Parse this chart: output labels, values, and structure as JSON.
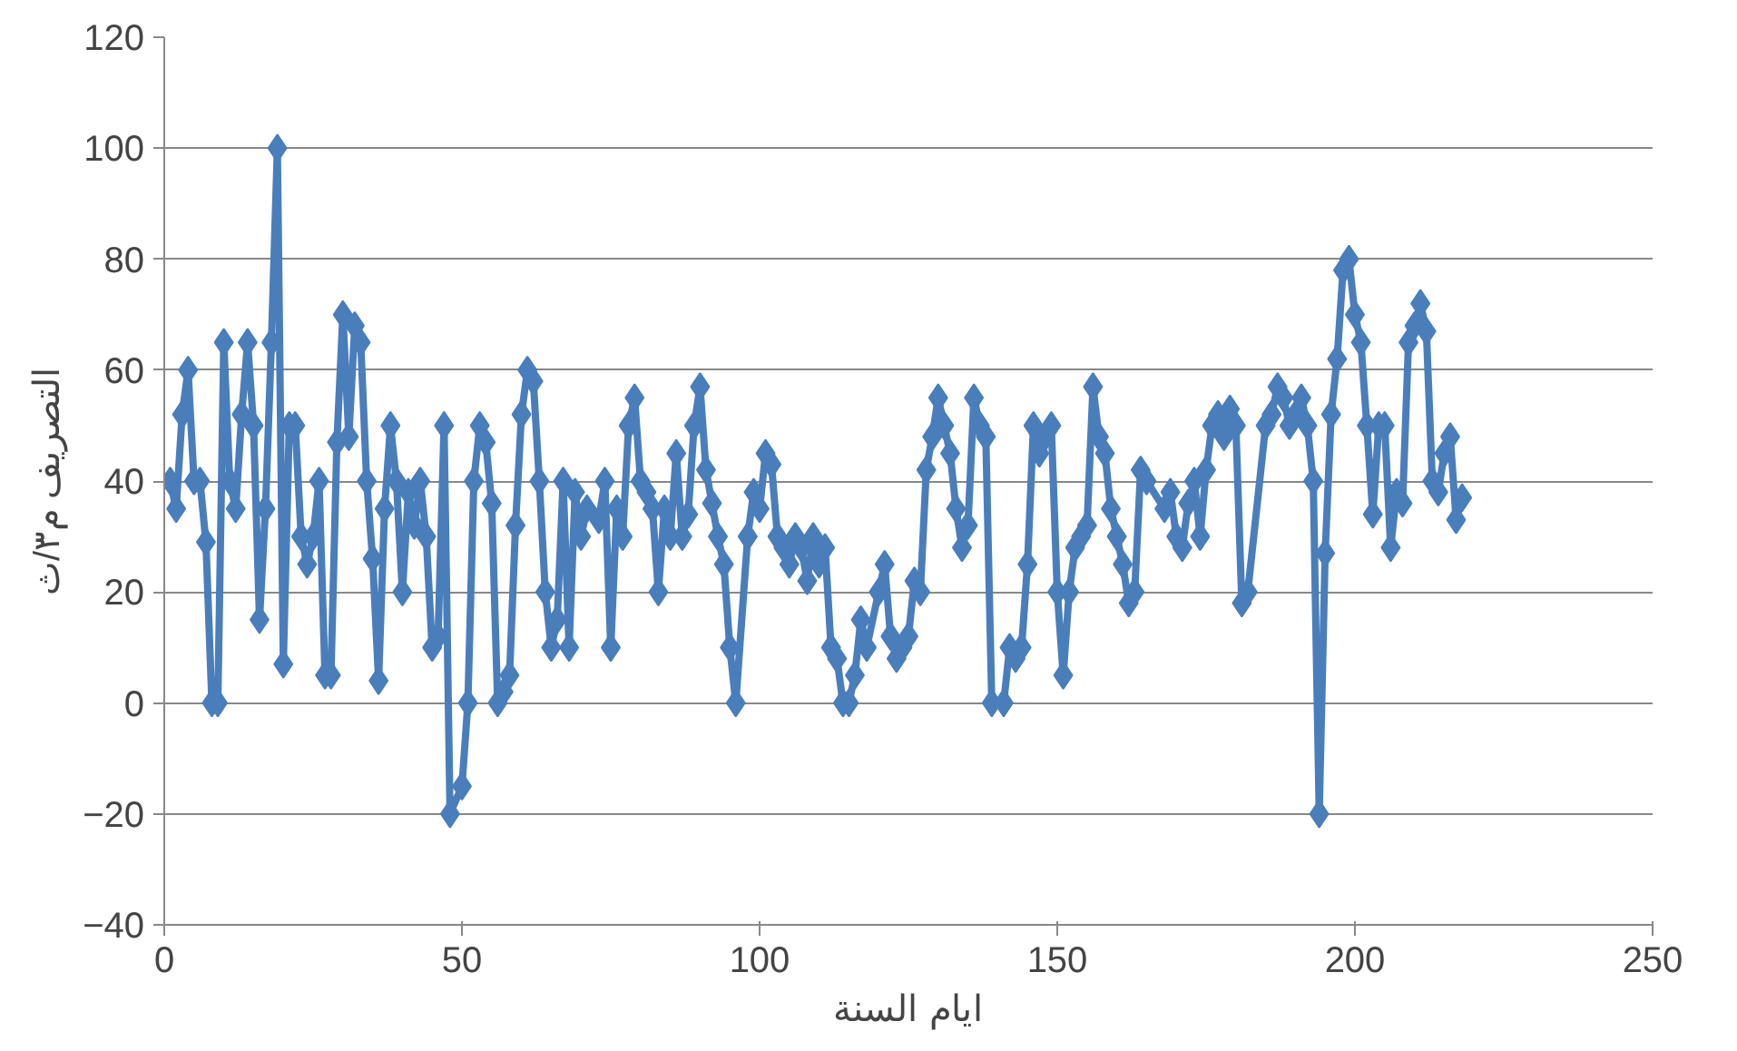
{
  "chart_data": {
    "type": "line",
    "xlabel": "ايام السنة",
    "ylabel": "التصريف م٣/ث",
    "x": [
      1,
      2,
      3,
      4,
      5,
      6,
      7,
      8,
      9,
      10,
      11,
      12,
      13,
      14,
      15,
      16,
      17,
      18,
      19,
      20,
      21,
      22,
      23,
      24,
      25,
      26,
      27,
      28,
      29,
      30,
      31,
      32,
      33,
      34,
      35,
      36,
      37,
      38,
      39,
      40,
      41,
      42,
      43,
      44,
      45,
      46,
      47,
      48,
      50,
      51,
      52,
      53,
      54,
      55,
      56,
      57,
      58,
      59,
      60,
      61,
      62,
      63,
      64,
      65,
      66,
      67,
      68,
      69,
      70,
      71,
      73,
      74,
      75,
      76,
      77,
      78,
      79,
      80,
      81,
      82,
      83,
      84,
      85,
      86,
      87,
      88,
      89,
      90,
      91,
      92,
      93,
      94,
      95,
      96,
      98,
      99,
      100,
      101,
      102,
      103,
      104,
      105,
      106,
      107,
      108,
      109,
      110,
      111,
      112,
      113,
      114,
      115,
      116,
      117,
      118,
      120,
      121,
      122,
      123,
      124,
      125,
      126,
      127,
      128,
      129,
      130,
      131,
      132,
      133,
      134,
      135,
      136,
      137,
      138,
      139,
      141,
      142,
      143,
      144,
      145,
      146,
      147,
      148,
      149,
      150,
      151,
      152,
      153,
      154,
      155,
      156,
      157,
      158,
      159,
      160,
      161,
      162,
      163,
      164,
      165,
      168,
      169,
      170,
      171,
      172,
      173,
      174,
      175,
      176,
      177,
      178,
      179,
      180,
      181,
      182,
      185,
      186,
      187,
      188,
      189,
      190,
      191,
      192,
      193,
      194,
      195,
      196,
      197,
      198,
      199,
      200,
      201,
      202,
      203,
      204,
      205,
      206,
      207,
      208,
      209,
      210,
      211,
      212,
      213,
      214,
      215,
      216,
      217,
      218
    ],
    "series": [
      {
        "color": "#4a7ebb",
        "values": [
          40,
          35,
          52,
          60,
          40,
          40,
          29,
          0,
          0,
          65,
          40,
          35,
          52,
          65,
          50,
          15,
          35,
          65,
          100,
          7,
          50,
          50,
          30,
          25,
          30,
          40,
          5,
          5,
          47,
          70,
          48,
          68,
          65,
          40,
          26,
          4,
          35,
          50,
          40,
          20,
          38,
          32,
          40,
          30,
          10,
          12,
          50,
          -20,
          -15,
          0,
          40,
          50,
          47,
          36,
          0,
          2,
          5,
          32,
          52,
          60,
          58,
          40,
          20,
          10,
          15,
          40,
          10,
          38,
          30,
          35,
          33,
          40,
          10,
          35,
          30,
          50,
          55,
          40,
          38,
          35,
          20,
          35,
          30,
          45,
          30,
          34,
          50,
          57,
          42,
          36,
          30,
          25,
          10,
          0,
          30,
          38,
          35,
          45,
          43,
          30,
          28,
          25,
          30,
          28,
          22,
          30,
          25,
          28,
          10,
          8,
          0,
          0,
          5,
          15,
          10,
          20,
          25,
          12,
          8,
          10,
          12,
          22,
          20,
          42,
          48,
          55,
          50,
          45,
          35,
          28,
          32,
          55,
          50,
          48,
          0,
          0,
          10,
          8,
          10,
          25,
          50,
          45,
          48,
          50,
          20,
          5,
          20,
          28,
          30,
          32,
          57,
          48,
          45,
          35,
          30,
          25,
          18,
          20,
          42,
          40,
          35,
          38,
          30,
          28,
          36,
          40,
          30,
          42,
          50,
          52,
          48,
          53,
          50,
          18,
          20,
          50,
          52,
          57,
          55,
          50,
          52,
          55,
          50,
          40,
          -20,
          27,
          52,
          62,
          78,
          80,
          70,
          65,
          50,
          34,
          50,
          50,
          28,
          38,
          36,
          65,
          68,
          72,
          67,
          40,
          38,
          45,
          48,
          33,
          37
        ]
      }
    ],
    "xlim": [
      0,
      250
    ],
    "xticks": [
      0,
      50,
      100,
      150,
      200,
      250
    ],
    "ylim": [
      -40,
      120
    ],
    "yticks": [
      -40,
      -20,
      0,
      20,
      40,
      60,
      80,
      100,
      120
    ],
    "grid": "y",
    "marker": "diamond",
    "line_style": "solid"
  }
}
